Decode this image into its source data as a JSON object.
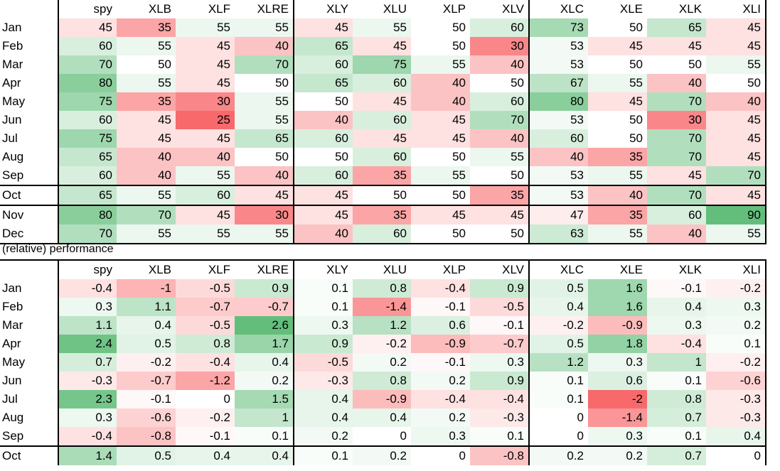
{
  "columns": [
    "spy",
    "XLB",
    "XLF",
    "XLRE",
    "XLY",
    "XLU",
    "XLP",
    "XLV",
    "XLC",
    "XLE",
    "XLK",
    "XLI"
  ],
  "section_label": "(relative) performance",
  "table_top": {
    "rows": [
      {
        "month": "Jan",
        "values": [
          45,
          35,
          55,
          55,
          45,
          55,
          50,
          60,
          73,
          50,
          65,
          45
        ]
      },
      {
        "month": "Feb",
        "values": [
          60,
          55,
          45,
          40,
          65,
          45,
          50,
          30,
          53,
          45,
          45,
          45
        ]
      },
      {
        "month": "Mar",
        "values": [
          70,
          50,
          45,
          70,
          60,
          75,
          55,
          40,
          53,
          50,
          50,
          55
        ]
      },
      {
        "month": "Apr",
        "values": [
          80,
          55,
          45,
          50,
          65,
          60,
          40,
          50,
          67,
          55,
          40,
          50
        ]
      },
      {
        "month": "May",
        "values": [
          75,
          35,
          30,
          55,
          50,
          45,
          40,
          60,
          80,
          45,
          70,
          40
        ]
      },
      {
        "month": "Jun",
        "values": [
          60,
          45,
          25,
          55,
          40,
          60,
          45,
          70,
          53,
          50,
          30,
          45
        ]
      },
      {
        "month": "Jul",
        "values": [
          75,
          45,
          45,
          65,
          60,
          45,
          45,
          40,
          60,
          50,
          70,
          45
        ]
      },
      {
        "month": "Aug",
        "values": [
          65,
          40,
          40,
          50,
          50,
          60,
          50,
          55,
          40,
          35,
          70,
          45
        ]
      },
      {
        "month": "Sep",
        "values": [
          60,
          40,
          55,
          40,
          60,
          35,
          55,
          50,
          53,
          55,
          45,
          70
        ]
      },
      {
        "month": "Oct",
        "values": [
          65,
          55,
          60,
          45,
          45,
          50,
          50,
          35,
          53,
          40,
          70,
          45
        ]
      },
      {
        "month": "Nov",
        "values": [
          80,
          70,
          45,
          30,
          45,
          35,
          45,
          45,
          47,
          35,
          60,
          90
        ]
      },
      {
        "month": "Dec",
        "values": [
          70,
          55,
          55,
          55,
          40,
          60,
          50,
          50,
          63,
          55,
          40,
          55
        ]
      }
    ]
  },
  "table_bottom": {
    "rows": [
      {
        "month": "Jan",
        "values": [
          -0.4,
          -1,
          -0.5,
          0.9,
          0.1,
          0.8,
          -0.4,
          0.9,
          0.5,
          1.6,
          -0.1,
          -0.2
        ]
      },
      {
        "month": "Feb",
        "values": [
          0.3,
          1.1,
          -0.7,
          -0.7,
          0.1,
          -1.4,
          -0.1,
          -0.5,
          0.4,
          1.6,
          0.4,
          0.3
        ]
      },
      {
        "month": "Mar",
        "values": [
          1.1,
          0.4,
          -0.5,
          2.6,
          0.3,
          1.2,
          0.6,
          -0.1,
          -0.2,
          -0.9,
          0.3,
          0.2
        ]
      },
      {
        "month": "Apr",
        "values": [
          2.4,
          0.5,
          0.8,
          1.7,
          0.9,
          -0.2,
          -0.9,
          -0.7,
          0.5,
          1.8,
          -0.4,
          0.1
        ]
      },
      {
        "month": "May",
        "values": [
          0.7,
          -0.2,
          -0.4,
          0.4,
          -0.5,
          0.2,
          -0.1,
          0.3,
          1.2,
          0.3,
          1,
          -0.2
        ]
      },
      {
        "month": "Jun",
        "values": [
          -0.3,
          -0.7,
          -1.2,
          0.2,
          -0.3,
          0.8,
          0.2,
          0.9,
          0.1,
          0.6,
          0.1,
          -0.6
        ]
      },
      {
        "month": "Jul",
        "values": [
          2.3,
          -0.1,
          0,
          1.5,
          0.4,
          -0.9,
          -0.4,
          -0.4,
          0.1,
          -2,
          0.8,
          -0.3
        ]
      },
      {
        "month": "Aug",
        "values": [
          0.3,
          -0.6,
          -0.2,
          1,
          0.4,
          0.4,
          0.2,
          -0.3,
          0,
          -1.4,
          0.7,
          -0.3
        ]
      },
      {
        "month": "Sep",
        "values": [
          -0.4,
          -0.8,
          -0.1,
          0.1,
          0.2,
          0,
          0.3,
          0.1,
          0,
          0.3,
          0.1,
          0.4
        ]
      },
      {
        "month": "Oct",
        "values": [
          1.4,
          0.5,
          0.4,
          0.4,
          0.1,
          0.2,
          0,
          -0.8,
          0.2,
          0.2,
          0.7,
          0
        ]
      }
    ]
  },
  "colors": {
    "positive": "#63be7b",
    "negative": "#f8696b",
    "neutral": "#ffffff"
  }
}
